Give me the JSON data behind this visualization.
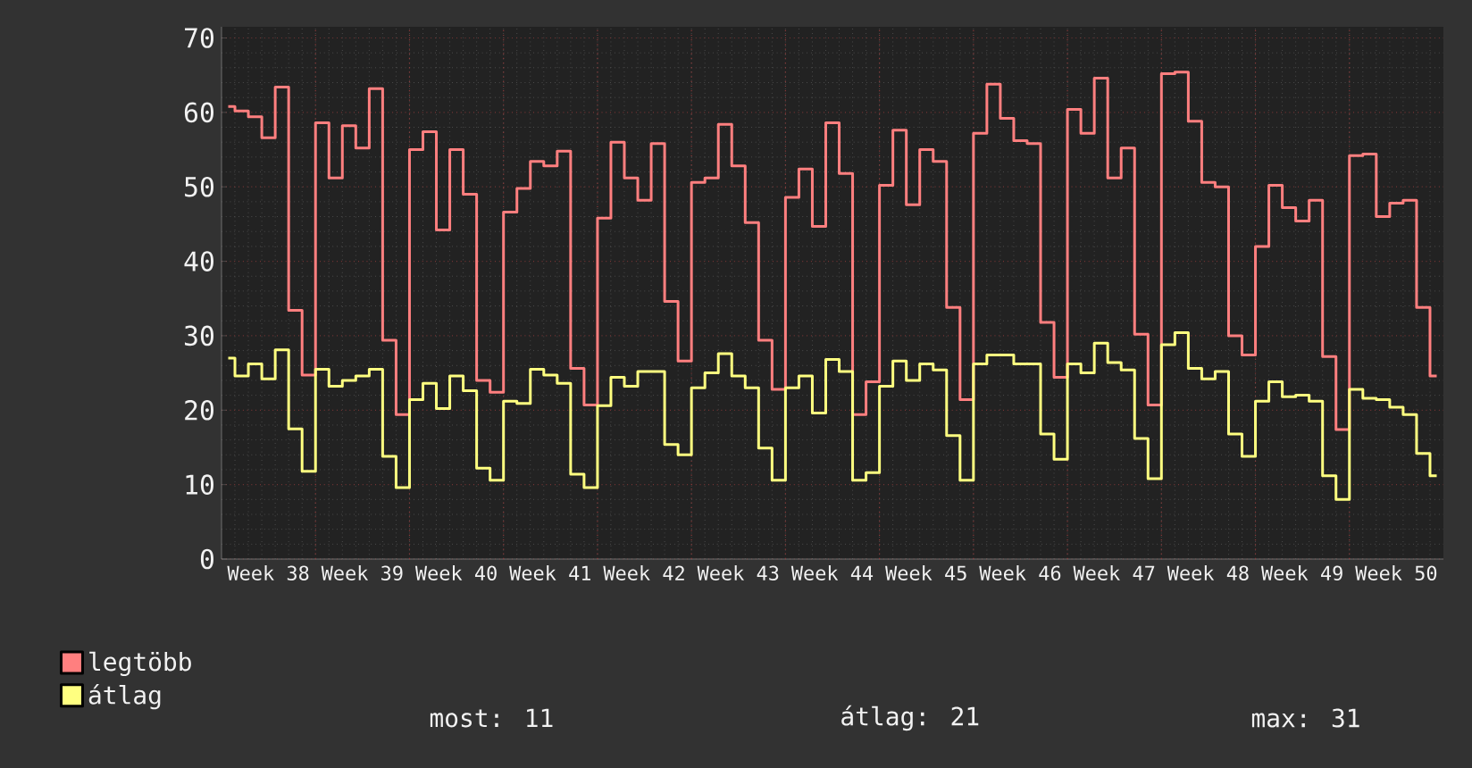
{
  "chart_data": {
    "type": "step",
    "categories": [
      null,
      null,
      null,
      "Week 38",
      null,
      null,
      null,
      null,
      null,
      null,
      "Week 39",
      null,
      null,
      null,
      null,
      null,
      null,
      "Week 40",
      null,
      null,
      null,
      null,
      null,
      null,
      "Week 41",
      null,
      null,
      null,
      null,
      null,
      null,
      "Week 42",
      null,
      null,
      null,
      null,
      null,
      null,
      "Week 43",
      null,
      null,
      null,
      null,
      null,
      null,
      "Week 44",
      null,
      null,
      null,
      null,
      null,
      null,
      "Week 45",
      null,
      null,
      null,
      null,
      null,
      null,
      "Week 46",
      null,
      null,
      null,
      null,
      null,
      null,
      "Week 47",
      null,
      null,
      null,
      null,
      null,
      null,
      "Week 48",
      null,
      null,
      null,
      null,
      null,
      null,
      "Week 49",
      null,
      null,
      null,
      null,
      null,
      null,
      "Week 50",
      null,
      null,
      null
    ],
    "ylim": [
      0,
      71.5
    ],
    "yticks": [
      0,
      10,
      20,
      30,
      40,
      50,
      60,
      70
    ],
    "grid": true,
    "legend": "bottom left",
    "series": [
      {
        "name": "legtöbb",
        "color": "#ff7f7f",
        "values": [
          60.8,
          60.2,
          59.4,
          56.6,
          63.4,
          33.4,
          24.7,
          58.6,
          51.2,
          58.2,
          55.2,
          63.2,
          29.4,
          19.4,
          55.0,
          57.4,
          44.2,
          55.0,
          49.0,
          24.0,
          22.4,
          46.6,
          49.8,
          53.4,
          52.8,
          54.8,
          25.6,
          20.7,
          45.8,
          56.0,
          51.2,
          48.2,
          55.8,
          34.6,
          26.6,
          50.6,
          51.2,
          58.4,
          52.8,
          45.2,
          29.4,
          22.8,
          48.6,
          52.4,
          44.7,
          58.6,
          51.8,
          19.4,
          23.8,
          50.2,
          57.6,
          47.6,
          55.0,
          53.4,
          33.8,
          21.4,
          57.2,
          63.8,
          59.2,
          56.2,
          55.8,
          31.8,
          24.4,
          60.4,
          57.2,
          64.6,
          51.2,
          55.2,
          30.2,
          20.7,
          65.2,
          65.4,
          58.8,
          50.6,
          50.0,
          30.0,
          27.4,
          42.0,
          50.2,
          47.2,
          45.4,
          48.2,
          27.2,
          17.4,
          54.2,
          54.4,
          46.0,
          47.8,
          48.2,
          33.8,
          24.6
        ]
      },
      {
        "name": "átlag",
        "color": "#ffff80",
        "values": [
          27.0,
          24.6,
          26.2,
          24.2,
          28.1,
          17.5,
          11.8,
          25.5,
          23.2,
          24.0,
          24.6,
          25.5,
          13.8,
          9.6,
          21.4,
          23.6,
          20.2,
          24.6,
          22.6,
          12.2,
          10.6,
          21.2,
          20.9,
          25.5,
          24.7,
          23.6,
          11.4,
          9.6,
          20.6,
          24.4,
          23.2,
          25.2,
          25.2,
          15.4,
          14.0,
          23.0,
          25.0,
          27.6,
          24.6,
          23.0,
          14.9,
          10.6,
          23.0,
          24.6,
          19.6,
          26.8,
          25.2,
          10.6,
          11.6,
          23.2,
          26.6,
          24.0,
          26.2,
          25.4,
          16.6,
          10.6,
          26.2,
          27.4,
          27.4,
          26.2,
          26.2,
          16.8,
          13.4,
          26.2,
          25.0,
          29.0,
          26.4,
          25.4,
          16.2,
          10.8,
          28.8,
          30.4,
          25.6,
          24.2,
          25.2,
          16.8,
          13.8,
          21.2,
          23.8,
          21.8,
          22.0,
          21.2,
          11.2,
          8.0,
          22.8,
          21.6,
          21.4,
          20.4,
          19.4,
          14.2,
          11.2
        ]
      }
    ],
    "annotations": [
      "most: 11",
      "átlag: 21",
      "max: 31"
    ]
  }
}
